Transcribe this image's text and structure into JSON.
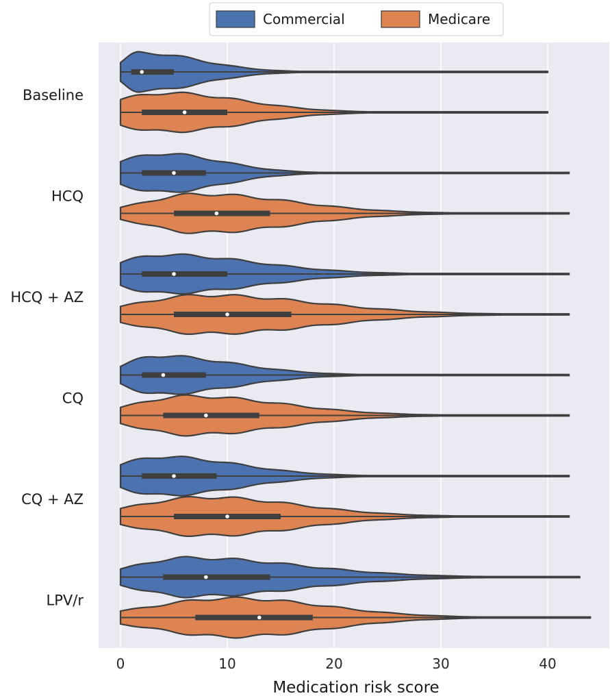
{
  "chart_data": {
    "type": "violin",
    "orientation": "horizontal",
    "title": "",
    "xlabel": "Medication risk score",
    "ylabel": "",
    "xlim": [
      -2,
      46
    ],
    "xticks": [
      0,
      10,
      20,
      30,
      40
    ],
    "grid": true,
    "legend_position": "top-center",
    "categories": [
      "Baseline",
      "HCQ",
      "HCQ + AZ",
      "CQ",
      "CQ + AZ",
      "LPV/r"
    ],
    "series": [
      {
        "name": "Commercial",
        "color": "#4c72b0",
        "stats": [
          {
            "min": 0,
            "q1": 1,
            "median": 2,
            "q3": 5,
            "max": 40
          },
          {
            "min": 0,
            "q1": 2,
            "median": 5,
            "q3": 8,
            "max": 42
          },
          {
            "min": 0,
            "q1": 2,
            "median": 5,
            "q3": 10,
            "max": 42
          },
          {
            "min": 0,
            "q1": 2,
            "median": 4,
            "q3": 8,
            "max": 42
          },
          {
            "min": 0,
            "q1": 2,
            "median": 5,
            "q3": 9,
            "max": 42
          },
          {
            "min": 0,
            "q1": 4,
            "median": 8,
            "q3": 14,
            "max": 43
          }
        ]
      },
      {
        "name": "Medicare",
        "color": "#dd8452",
        "stats": [
          {
            "min": 0,
            "q1": 2,
            "median": 6,
            "q3": 10,
            "max": 40
          },
          {
            "min": 0,
            "q1": 5,
            "median": 9,
            "q3": 14,
            "max": 42
          },
          {
            "min": 0,
            "q1": 5,
            "median": 10,
            "q3": 16,
            "max": 42
          },
          {
            "min": 0,
            "q1": 4,
            "median": 8,
            "q3": 13,
            "max": 42
          },
          {
            "min": 0,
            "q1": 5,
            "median": 10,
            "q3": 15,
            "max": 42
          },
          {
            "min": 0,
            "q1": 7,
            "median": 13,
            "q3": 18,
            "max": 44
          }
        ]
      }
    ]
  },
  "legend": {
    "items": [
      {
        "label": "Commercial",
        "color": "#4c72b0"
      },
      {
        "label": "Medicare",
        "color": "#dd8452"
      }
    ]
  },
  "colors": {
    "plot_background": "#eaeaf2",
    "grid": "#ffffff",
    "box": "#3f3f3f"
  }
}
